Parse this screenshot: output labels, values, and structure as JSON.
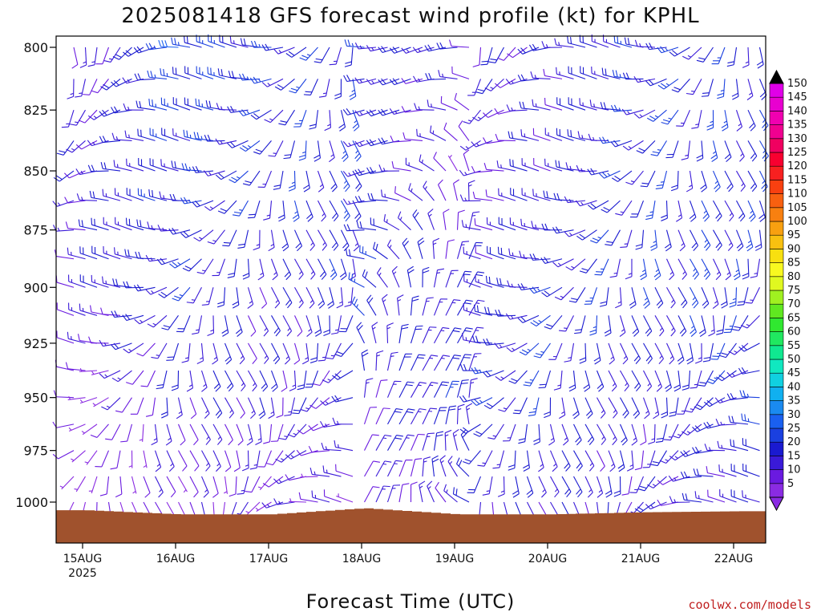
{
  "chart_data": {
    "type": "wind-barb time-height profile",
    "title": "2025081418 GFS forecast wind profile (kt) for KPHL",
    "xlabel": "Forecast Time (UTC)",
    "ylabel": "",
    "credit": "coolwx.com/models",
    "y_levels_hPa": [
      800,
      825,
      850,
      875,
      900,
      925,
      950,
      975,
      1000
    ],
    "y_axis_inverted": true,
    "x_ticks": [
      {
        "label": "15AUG",
        "sublabel": "2025"
      },
      {
        "label": "16AUG",
        "sublabel": ""
      },
      {
        "label": "17AUG",
        "sublabel": ""
      },
      {
        "label": "18AUG",
        "sublabel": ""
      },
      {
        "label": "19AUG",
        "sublabel": ""
      },
      {
        "label": "20AUG",
        "sublabel": ""
      },
      {
        "label": "21AUG",
        "sublabel": ""
      },
      {
        "label": "22AUG",
        "sublabel": ""
      }
    ],
    "colorbar_kt": [
      5,
      10,
      15,
      20,
      25,
      30,
      35,
      40,
      45,
      50,
      55,
      60,
      65,
      70,
      75,
      80,
      85,
      90,
      95,
      100,
      105,
      110,
      115,
      120,
      125,
      130,
      135,
      140,
      145,
      150
    ],
    "colorbar_colors": [
      "#8a2be2",
      "#6a1ae0",
      "#3a1ad8",
      "#1a1ad0",
      "#1a40e0",
      "#1a60f0",
      "#1a8af0",
      "#10b0f0",
      "#10d0e0",
      "#10e8c0",
      "#10e890",
      "#20e860",
      "#30e830",
      "#60e820",
      "#a0f020",
      "#e0f820",
      "#f8f820",
      "#f8e010",
      "#f8c010",
      "#f8a010",
      "#f88010",
      "#f86010",
      "#f84010",
      "#f82020",
      "#f80030",
      "#f00060",
      "#f00090",
      "#f000b0",
      "#e800d0",
      "#e000e8"
    ],
    "surface_fill": "#a0522d",
    "barb_color": "#7b2be8",
    "surface_pressure_by_day": [
      1004,
      1006,
      1006,
      1003,
      1006,
      1006,
      1005,
      1004.5
    ],
    "wind_speed_kt_by_level": {
      "800": [
        10,
        25,
        20,
        20,
        15,
        15,
        20,
        20
      ],
      "850": [
        15,
        20,
        20,
        20,
        10,
        15,
        20,
        20
      ],
      "900": [
        15,
        20,
        15,
        20,
        15,
        20,
        20,
        20
      ],
      "950": [
        5,
        15,
        15,
        15,
        20,
        20,
        15,
        20
      ],
      "1000": [
        5,
        10,
        10,
        10,
        15,
        15,
        15,
        15
      ]
    }
  }
}
